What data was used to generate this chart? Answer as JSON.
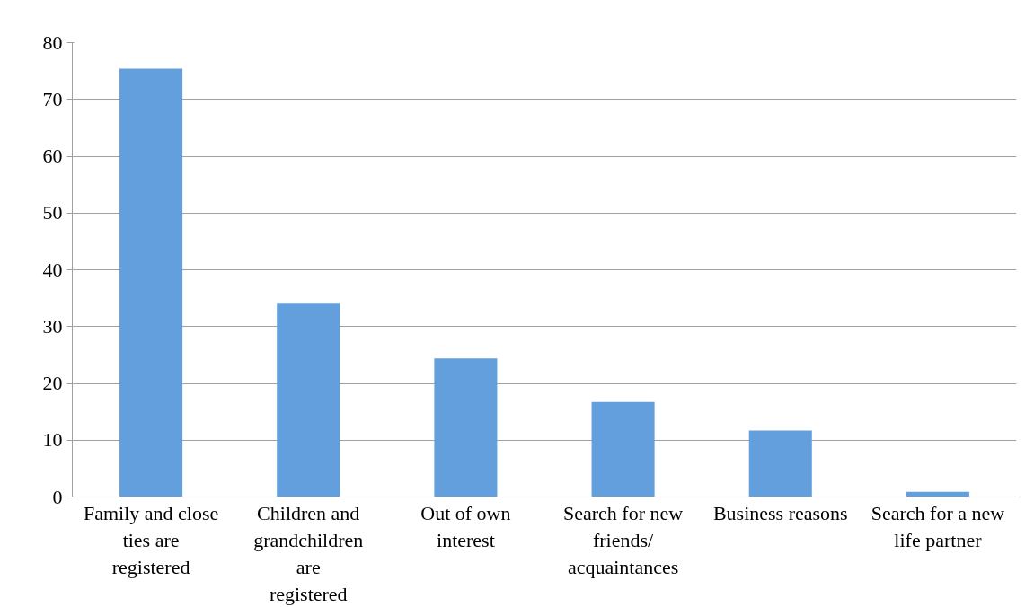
{
  "chart_data": {
    "type": "bar",
    "categories": [
      "Family and close ties are registered",
      "Children and grandchildren are registered",
      "Out of own interest",
      "Search for new friends/ acquaintances",
      "Business reasons",
      "Search for a new life partner"
    ],
    "values": [
      75.4,
      34.2,
      24.4,
      16.7,
      11.7,
      0.9
    ],
    "color": "#629fdc",
    "ylim": [
      0,
      80
    ],
    "yticks": [
      0,
      10,
      20,
      30,
      40,
      50,
      60,
      70,
      80
    ],
    "grid": "y"
  }
}
